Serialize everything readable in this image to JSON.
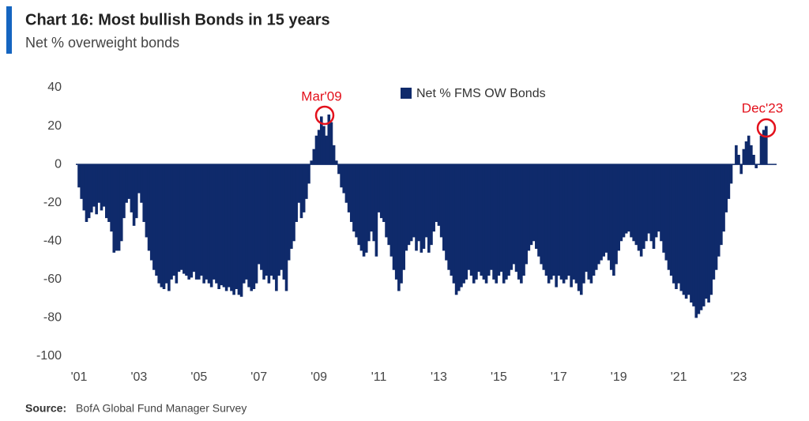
{
  "chart_data": {
    "type": "bar",
    "title": "Chart 16: Most bullish Bonds in 15 years",
    "subtitle": "Net % overweight bonds",
    "source": {
      "label": "Source:",
      "text": "BofA Global Fund Manager Survey"
    },
    "annotations": [
      "Mar'09",
      "Dec'23"
    ],
    "color": "#0f2a6b",
    "annotation_color": "#e3101b",
    "series": [
      {
        "name": "Net % FMS OW Bonds",
        "color": "#0f2a6b",
        "values": [
          -12,
          -18,
          -24,
          -30,
          -28,
          -25,
          -22,
          -26,
          -20,
          -24,
          -22,
          -28,
          -30,
          -35,
          -46,
          -45,
          -45,
          -40,
          -28,
          -20,
          -18,
          -25,
          -32,
          -28,
          -15,
          -20,
          -30,
          -38,
          -45,
          -50,
          -55,
          -58,
          -62,
          -64,
          -65,
          -62,
          -66,
          -60,
          -58,
          -62,
          -56,
          -55,
          -57,
          -58,
          -60,
          -59,
          -56,
          -60,
          -60,
          -58,
          -62,
          -60,
          -62,
          -64,
          -60,
          -62,
          -65,
          -63,
          -64,
          -66,
          -64,
          -66,
          -68,
          -65,
          -68,
          -69,
          -62,
          -60,
          -64,
          -66,
          -65,
          -62,
          -52,
          -55,
          -60,
          -58,
          -62,
          -58,
          -60,
          -66,
          -58,
          -55,
          -60,
          -66,
          -50,
          -44,
          -40,
          -30,
          -20,
          -28,
          -25,
          -18,
          -10,
          2,
          8,
          15,
          18,
          25,
          20,
          15,
          26,
          22,
          10,
          2,
          -5,
          -12,
          -15,
          -20,
          -25,
          -30,
          -35,
          -38,
          -42,
          -45,
          -48,
          -46,
          -40,
          -35,
          -40,
          -48,
          -25,
          -28,
          -30,
          -38,
          -42,
          -48,
          -55,
          -60,
          -66,
          -62,
          -55,
          -45,
          -42,
          -40,
          -38,
          -45,
          -40,
          -46,
          -44,
          -38,
          -46,
          -42,
          -35,
          -30,
          -32,
          -38,
          -45,
          -50,
          -55,
          -58,
          -62,
          -68,
          -66,
          -64,
          -62,
          -60,
          -55,
          -58,
          -62,
          -60,
          -56,
          -58,
          -60,
          -62,
          -58,
          -55,
          -60,
          -62,
          -58,
          -56,
          -62,
          -60,
          -58,
          -55,
          -52,
          -56,
          -60,
          -62,
          -58,
          -52,
          -45,
          -42,
          -40,
          -44,
          -48,
          -52,
          -55,
          -58,
          -62,
          -60,
          -58,
          -64,
          -58,
          -60,
          -62,
          -60,
          -58,
          -64,
          -60,
          -62,
          -66,
          -68,
          -62,
          -56,
          -60,
          -62,
          -58,
          -55,
          -52,
          -50,
          -48,
          -46,
          -50,
          -55,
          -58,
          -52,
          -45,
          -40,
          -38,
          -36,
          -35,
          -38,
          -40,
          -42,
          -45,
          -48,
          -44,
          -40,
          -36,
          -40,
          -44,
          -38,
          -35,
          -40,
          -46,
          -50,
          -55,
          -58,
          -62,
          -65,
          -62,
          -66,
          -68,
          -70,
          -68,
          -72,
          -74,
          -80,
          -78,
          -76,
          -74,
          -70,
          -72,
          -68,
          -60,
          -55,
          -48,
          -42,
          -35,
          -25,
          -18,
          -10,
          0,
          10,
          5,
          -5,
          8,
          12,
          15,
          10,
          5,
          -2,
          0,
          15,
          18,
          20
        ]
      }
    ],
    "categories": [
      "'01",
      null,
      null,
      null,
      null,
      null,
      null,
      null,
      null,
      null,
      null,
      null,
      null,
      null,
      null,
      null,
      null,
      null,
      null,
      null,
      null,
      null,
      null,
      null,
      "'03",
      null,
      null,
      null,
      null,
      null,
      null,
      null,
      null,
      null,
      null,
      null,
      null,
      null,
      null,
      null,
      null,
      null,
      null,
      null,
      null,
      null,
      null,
      null,
      "'05",
      null,
      null,
      null,
      null,
      null,
      null,
      null,
      null,
      null,
      null,
      null,
      null,
      null,
      null,
      null,
      null,
      null,
      null,
      null,
      null,
      null,
      null,
      null,
      "'07",
      null,
      null,
      null,
      null,
      null,
      null,
      null,
      null,
      null,
      null,
      null,
      null,
      null,
      null,
      null,
      null,
      null,
      null,
      null,
      null,
      null,
      null,
      null,
      "'09",
      null,
      null,
      null,
      null,
      null,
      null,
      null,
      null,
      null,
      null,
      null,
      null,
      null,
      null,
      null,
      null,
      null,
      null,
      null,
      null,
      null,
      null,
      null,
      "'11",
      null,
      null,
      null,
      null,
      null,
      null,
      null,
      null,
      null,
      null,
      null,
      null,
      null,
      null,
      null,
      null,
      null,
      null,
      null,
      null,
      null,
      null,
      null,
      "'13",
      null,
      null,
      null,
      null,
      null,
      null,
      null,
      null,
      null,
      null,
      null,
      null,
      null,
      null,
      null,
      null,
      null,
      null,
      null,
      null,
      null,
      null,
      null,
      "'15",
      null,
      null,
      null,
      null,
      null,
      null,
      null,
      null,
      null,
      null,
      null,
      null,
      null,
      null,
      null,
      null,
      null,
      null,
      null,
      null,
      null,
      null,
      null,
      "'17",
      null,
      null,
      null,
      null,
      null,
      null,
      null,
      null,
      null,
      null,
      null,
      null,
      null,
      null,
      null,
      null,
      null,
      null,
      null,
      null,
      null,
      null,
      null,
      "'19",
      null,
      null,
      null,
      null,
      null,
      null,
      null,
      null,
      null,
      null,
      null,
      null,
      null,
      null,
      null,
      null,
      null,
      null,
      null,
      null,
      null,
      null,
      null,
      "'21",
      null,
      null,
      null,
      null,
      null,
      null,
      null,
      null,
      null,
      null,
      null,
      null,
      null,
      null,
      null,
      null,
      null,
      null,
      null,
      null,
      null,
      null,
      null,
      "'23",
      null,
      null,
      null,
      null,
      null,
      null,
      null,
      null,
      null,
      null,
      null
    ],
    "ylim": [
      -100,
      40
    ],
    "yticks": [
      -100,
      -80,
      -60,
      -40,
      -20,
      0,
      20,
      40
    ],
    "grid": false,
    "legend": "top"
  }
}
